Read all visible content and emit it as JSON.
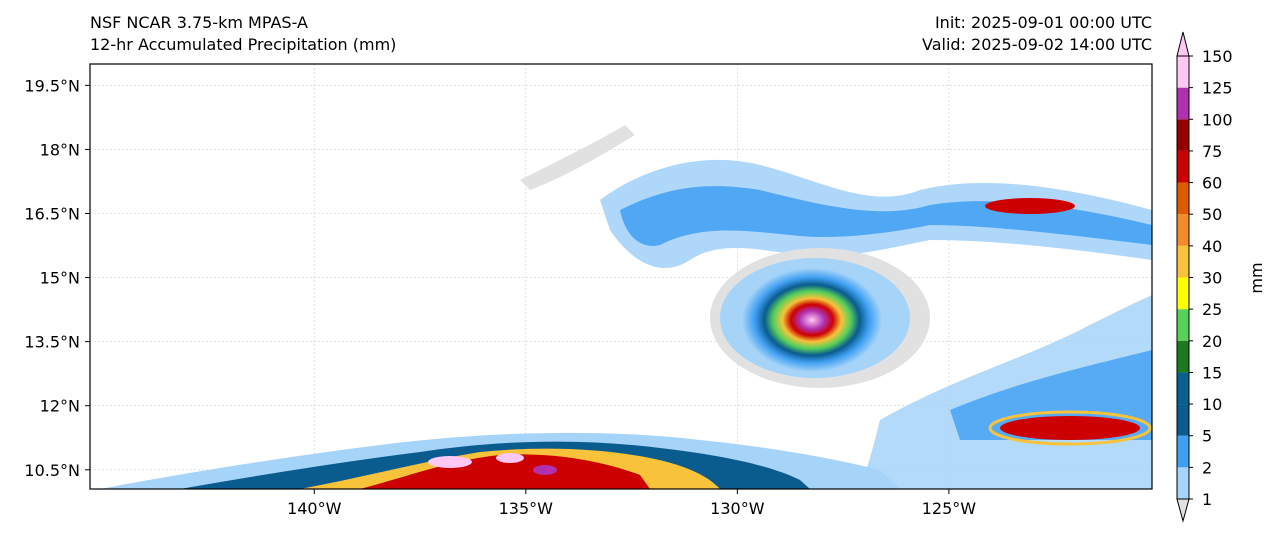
{
  "header": {
    "model": "NSF NCAR 3.75-km MPAS-A",
    "field": "12-hr Accumulated Precipitation (mm)",
    "init": "Init: 2025-09-01 00:00 UTC",
    "valid": "Valid: 2025-09-02 14:00 UTC"
  },
  "axes": {
    "lat_ticks": [
      "19.5°N",
      "18°N",
      "16.5°N",
      "15°N",
      "13.5°N",
      "12°N",
      "10.5°N"
    ],
    "lat_values": [
      19.5,
      18,
      16.5,
      15,
      13.5,
      12,
      10.5
    ],
    "lon_ticks": [
      "140°W",
      "135°W",
      "130°W",
      "125°W"
    ],
    "lon_values": [
      -140,
      -135,
      -130,
      -125
    ],
    "lon_range": [
      -145.3,
      -120.2
    ],
    "lat_range": [
      10.05,
      20.0
    ]
  },
  "colorbar": {
    "label": "mm",
    "levels": [
      "1",
      "2",
      "5",
      "10",
      "15",
      "20",
      "25",
      "30",
      "40",
      "50",
      "60",
      "75",
      "100",
      "125",
      "150"
    ],
    "colors": [
      "#e1e1e1",
      "#a6d3f8",
      "#3f9ff2",
      "#0a5b8e",
      "#08608f",
      "#1f7a1f",
      "#57d15a",
      "#ffff00",
      "#f8c23a",
      "#f28c28",
      "#e05a00",
      "#cc0000",
      "#960000",
      "#b030b0",
      "#ffc8f4"
    ]
  }
}
